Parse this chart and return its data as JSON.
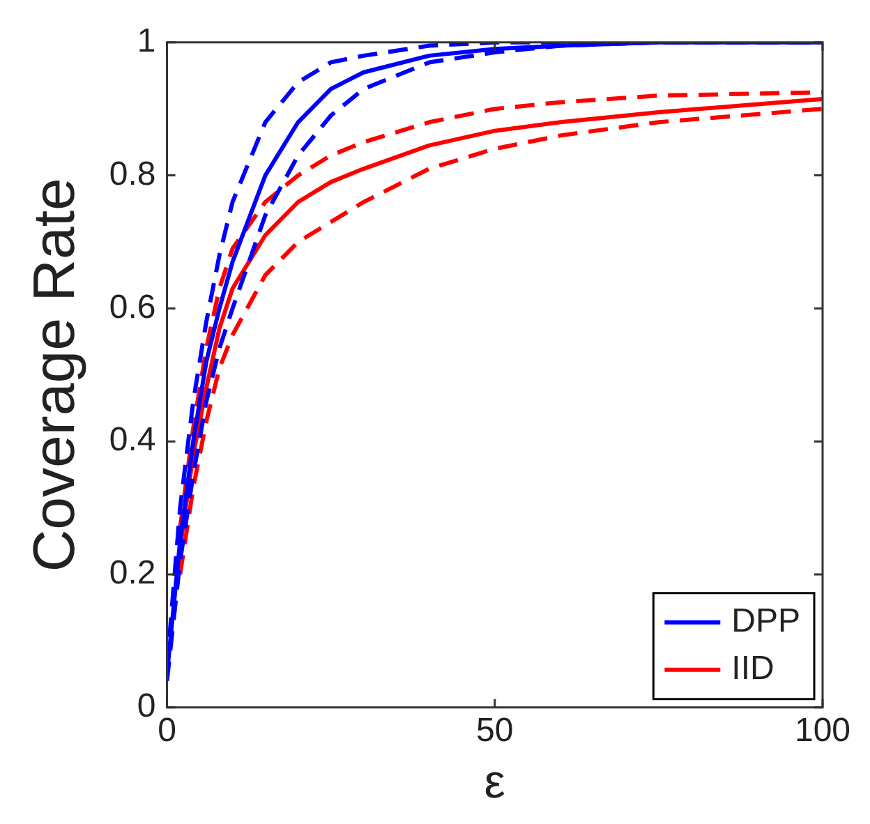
{
  "chart_data": {
    "type": "line",
    "xlabel": "ε",
    "ylabel": "Coverage Rate",
    "x": [
      0,
      2,
      4,
      6,
      8,
      10,
      15,
      20,
      25,
      30,
      40,
      50,
      60,
      75,
      100
    ],
    "xlim": [
      0,
      100
    ],
    "xticks": [
      0,
      50,
      100
    ],
    "ylim": [
      0,
      1
    ],
    "yticks": [
      0,
      0.2,
      0.4,
      0.6,
      0.8,
      1
    ],
    "grid": false,
    "legend": "bottom right",
    "marker": "none",
    "series": [
      {
        "name": "DPP",
        "color": "#0000ff",
        "line_style": "solid",
        "values": [
          0.05,
          0.25,
          0.4,
          0.52,
          0.6,
          0.67,
          0.8,
          0.88,
          0.93,
          0.955,
          0.98,
          0.99,
          0.995,
          1,
          1
        ]
      },
      {
        "color": "#0000ff",
        "line_style": "dashed",
        "values": [
          0.06,
          0.3,
          0.46,
          0.58,
          0.68,
          0.76,
          0.88,
          0.94,
          0.97,
          0.98,
          0.995,
          1,
          1,
          1,
          1
        ]
      },
      {
        "color": "#0000ff",
        "line_style": "dashed",
        "values": [
          0.04,
          0.22,
          0.35,
          0.46,
          0.54,
          0.6,
          0.74,
          0.83,
          0.89,
          0.93,
          0.97,
          0.985,
          0.995,
          1,
          1
        ]
      },
      {
        "name": "IID",
        "color": "#ff0000",
        "line_style": "solid",
        "values": [
          null,
          0.24,
          0.38,
          0.48,
          0.57,
          0.63,
          0.71,
          0.76,
          0.79,
          0.81,
          0.845,
          0.867,
          0.88,
          0.895,
          0.915
        ]
      },
      {
        "color": "#ff0000",
        "line_style": "dashed",
        "values": [
          null,
          0.27,
          0.42,
          0.54,
          0.63,
          0.69,
          0.76,
          0.8,
          0.83,
          0.85,
          0.88,
          0.9,
          0.91,
          0.92,
          0.925
        ]
      },
      {
        "color": "#ff0000",
        "line_style": "dashed",
        "values": [
          null,
          0.2,
          0.33,
          0.43,
          0.51,
          0.56,
          0.65,
          0.7,
          0.73,
          0.76,
          0.81,
          0.84,
          0.86,
          0.88,
          0.9
        ]
      }
    ]
  }
}
